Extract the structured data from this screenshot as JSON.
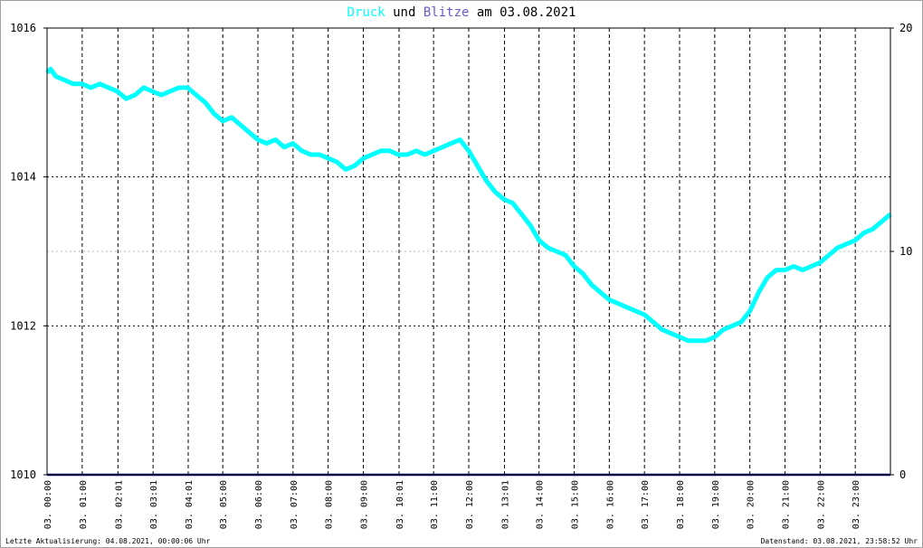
{
  "title": {
    "part1": "Druck",
    "part2": " und ",
    "part3": "Blitze",
    "part4": " am 03.08.2021"
  },
  "footer": {
    "left": "Letzte Aktualisierung: 04.08.2021, 00:00:06 Uhr",
    "right": "Datenstand: 03.08.2021, 23:58:52 Uhr"
  },
  "colors": {
    "druck": "#00ffff",
    "blitze": "#6a5acd",
    "baseline": "#000080",
    "grid": "#000000",
    "text": "#000000"
  },
  "chart_data": {
    "type": "line",
    "title": "Druck und Blitze am 03.08.2021",
    "x_tick_labels": [
      "03. 00:00",
      "03. 01:00",
      "03. 02:01",
      "03. 03:01",
      "03. 04:01",
      "03. 05:00",
      "03. 06:00",
      "03. 07:00",
      "03. 08:00",
      "03. 09:00",
      "03. 10:01",
      "03. 11:00",
      "03. 12:00",
      "03. 13:01",
      "03. 14:00",
      "03. 15:00",
      "03. 16:00",
      "03. 17:00",
      "03. 18:00",
      "03. 19:00",
      "03. 20:00",
      "03. 21:00",
      "03. 22:00",
      "03. 23:00"
    ],
    "x_tick_hours": [
      0,
      1,
      2.017,
      3.017,
      4.017,
      5,
      6,
      7,
      8,
      9,
      10.017,
      11,
      12,
      13.017,
      14,
      15,
      16,
      17,
      18,
      19,
      20,
      21,
      22,
      23
    ],
    "x_range_hours": [
      0,
      24
    ],
    "y_left": {
      "ylim": [
        1010,
        1016
      ],
      "ticks": [
        "1010",
        "1012",
        "1014",
        "1016"
      ]
    },
    "y_right": {
      "ylim": [
        0,
        20
      ],
      "ticks": [
        "0",
        "10",
        "20"
      ]
    },
    "grid": true,
    "series": [
      {
        "name": "Druck",
        "axis": "left",
        "x": [
          0,
          0.1,
          0.25,
          0.5,
          0.75,
          1.0,
          1.25,
          1.5,
          1.75,
          2.0,
          2.25,
          2.5,
          2.75,
          3.0,
          3.25,
          3.5,
          3.75,
          4.0,
          4.25,
          4.5,
          4.75,
          5.0,
          5.25,
          5.5,
          5.75,
          6.0,
          6.25,
          6.5,
          6.75,
          7.0,
          7.25,
          7.5,
          7.75,
          8.0,
          8.25,
          8.5,
          8.75,
          9.0,
          9.25,
          9.5,
          9.75,
          10.0,
          10.25,
          10.5,
          10.75,
          11.0,
          11.25,
          11.5,
          11.75,
          12.0,
          12.25,
          12.5,
          12.75,
          13.0,
          13.25,
          13.5,
          13.75,
          14.0,
          14.25,
          14.5,
          14.75,
          15.0,
          15.25,
          15.5,
          15.75,
          16.0,
          16.25,
          16.5,
          16.75,
          17.0,
          17.25,
          17.5,
          17.75,
          18.0,
          18.25,
          18.5,
          18.75,
          19.0,
          19.25,
          19.5,
          19.75,
          20.0,
          20.25,
          20.5,
          20.75,
          21.0,
          21.25,
          21.5,
          21.75,
          22.0,
          22.25,
          22.5,
          22.75,
          23.0,
          23.25,
          23.5,
          23.75,
          24.0
        ],
        "values": [
          1015.4,
          1015.45,
          1015.35,
          1015.3,
          1015.25,
          1015.25,
          1015.2,
          1015.25,
          1015.2,
          1015.15,
          1015.05,
          1015.1,
          1015.2,
          1015.15,
          1015.1,
          1015.15,
          1015.2,
          1015.2,
          1015.1,
          1015.0,
          1014.85,
          1014.75,
          1014.8,
          1014.7,
          1014.6,
          1014.5,
          1014.45,
          1014.5,
          1014.4,
          1014.45,
          1014.35,
          1014.3,
          1014.3,
          1014.25,
          1014.2,
          1014.1,
          1014.15,
          1014.25,
          1014.3,
          1014.35,
          1014.35,
          1014.3,
          1014.3,
          1014.35,
          1014.3,
          1014.35,
          1014.4,
          1014.45,
          1014.5,
          1014.35,
          1014.15,
          1013.95,
          1013.8,
          1013.7,
          1013.65,
          1013.5,
          1013.35,
          1013.15,
          1013.05,
          1013.0,
          1012.95,
          1012.8,
          1012.7,
          1012.55,
          1012.45,
          1012.35,
          1012.3,
          1012.25,
          1012.2,
          1012.15,
          1012.05,
          1011.95,
          1011.9,
          1011.85,
          1011.8,
          1011.8,
          1011.8,
          1011.85,
          1011.95,
          1012.0,
          1012.05,
          1012.2,
          1012.45,
          1012.65,
          1012.75,
          1012.75,
          1012.8,
          1012.75,
          1012.8,
          1012.85,
          1012.95,
          1013.05,
          1013.1,
          1013.15,
          1013.25,
          1013.3,
          1013.4,
          1013.5
        ]
      },
      {
        "name": "Blitze",
        "axis": "right",
        "x": [
          0,
          24
        ],
        "values": [
          0,
          0
        ]
      }
    ]
  }
}
